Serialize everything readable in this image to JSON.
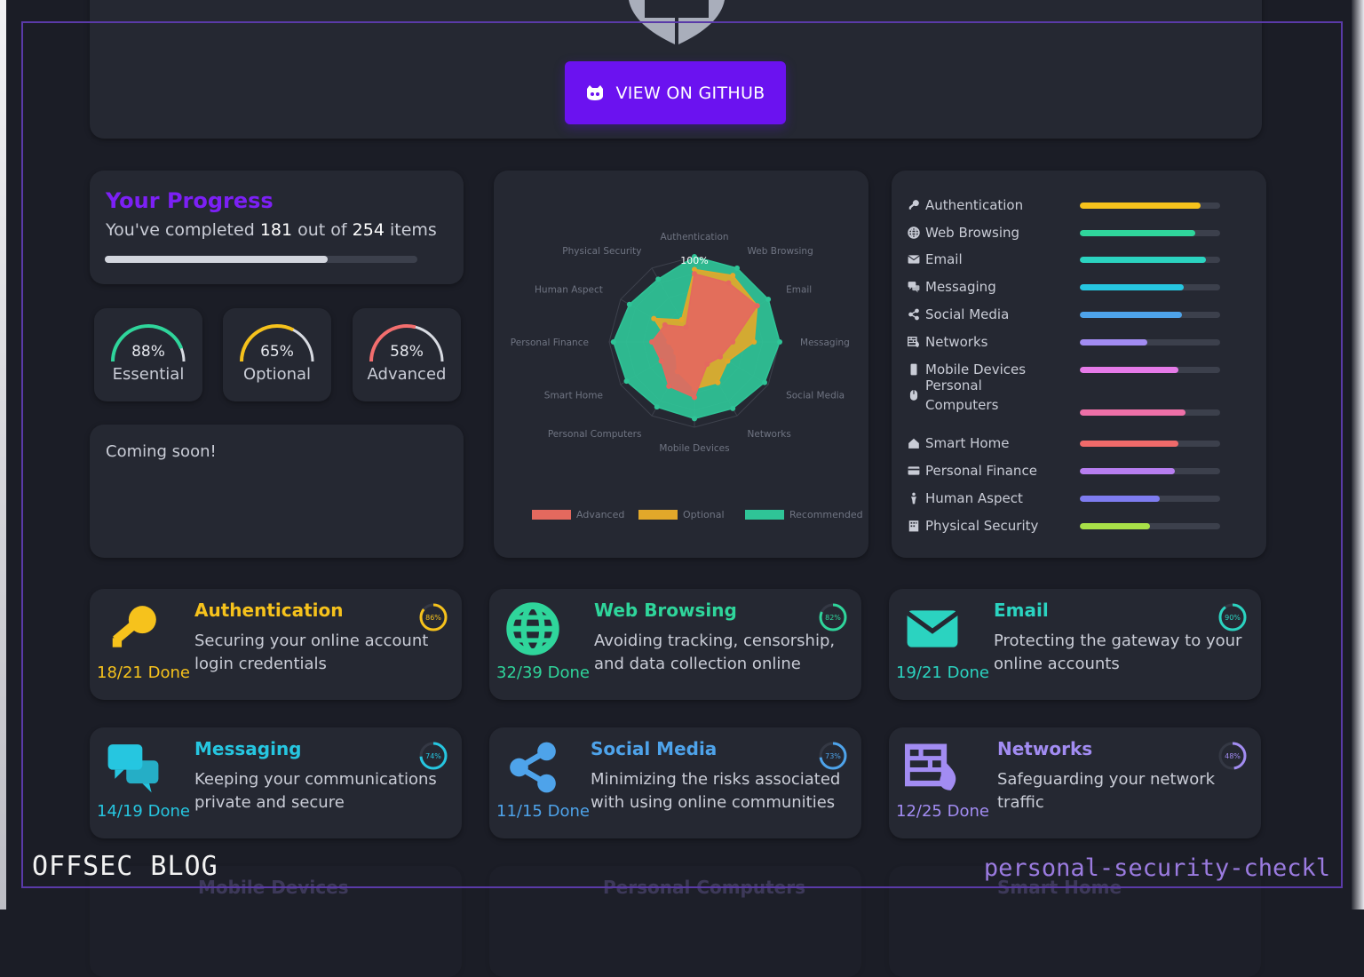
{
  "hero": {
    "github_button": "VIEW ON GITHUB"
  },
  "progress": {
    "title": "Your Progress",
    "prefix": "You've completed",
    "done": "181",
    "middle": "out of",
    "total": "254",
    "suffix": "items",
    "fraction": 0.713
  },
  "gauges": [
    {
      "pct": "88%",
      "value": 0.88,
      "label": "Essential",
      "color": "#2fd59b"
    },
    {
      "pct": "65%",
      "value": 0.65,
      "label": "Optional",
      "color": "#f6c21c"
    },
    {
      "pct": "58%",
      "value": 0.58,
      "label": "Advanced",
      "color": "#f36e6e"
    }
  ],
  "coming_soon": "Coming soon!",
  "chart_data": {
    "type": "radar",
    "axes": [
      "Authentication",
      "Web Browsing",
      "Email",
      "Messaging",
      "Social Media",
      "Networks",
      "Mobile Devices",
      "Personal Computers",
      "Smart Home",
      "Personal Finance",
      "Human Aspect",
      "Physical Security"
    ],
    "scale_label": "100%",
    "series": [
      {
        "name": "Recommended",
        "color": "#2fc497",
        "values": [
          100,
          100,
          100,
          100,
          95,
          90,
          90,
          88,
          92,
          95,
          88,
          85
        ]
      },
      {
        "name": "Optional",
        "color": "#e2a82a",
        "values": [
          85,
          90,
          85,
          70,
          45,
          55,
          55,
          40,
          25,
          30,
          55,
          30
        ]
      },
      {
        "name": "Advanced",
        "color": "#e4695e",
        "values": [
          80,
          80,
          85,
          45,
          35,
          30,
          65,
          60,
          45,
          50,
          40,
          20
        ]
      }
    ]
  },
  "categories": [
    {
      "name": "Authentication",
      "icon": "key-icon",
      "pct": 86,
      "color": "#f6c21c"
    },
    {
      "name": "Web Browsing",
      "icon": "globe-icon",
      "pct": 82,
      "color": "#2fd59b"
    },
    {
      "name": "Email",
      "icon": "envelope-icon",
      "pct": 90,
      "color": "#2bd3c0"
    },
    {
      "name": "Messaging",
      "icon": "chat-icon",
      "pct": 74,
      "color": "#26c6e0"
    },
    {
      "name": "Social Media",
      "icon": "share-icon",
      "pct": 73,
      "color": "#4ea3ea"
    },
    {
      "name": "Networks",
      "icon": "firewall-icon",
      "pct": 48,
      "color": "#a28cf2"
    },
    {
      "name": "Mobile Devices",
      "icon": "phone-icon",
      "pct": 70,
      "color": "#e57ae8"
    },
    {
      "name": "Personal Computers",
      "icon": "mouse-icon",
      "pct": 75,
      "color": "#ee70a8"
    },
    {
      "name": "Smart Home",
      "icon": "house-icon",
      "pct": 70,
      "color": "#f06a6a"
    },
    {
      "name": "Personal Finance",
      "icon": "card-icon",
      "pct": 68,
      "color": "#b77ef0"
    },
    {
      "name": "Human Aspect",
      "icon": "person-icon",
      "pct": 57,
      "color": "#7e7cf0"
    },
    {
      "name": "Physical Security",
      "icon": "building-icon",
      "pct": 50,
      "color": "#a8e048"
    }
  ],
  "sections": [
    {
      "title": "Authentication",
      "desc": "Securing your online account login credentials",
      "done": "18/21 Done",
      "ring": "86%",
      "value": 0.86,
      "color": "#f6c21c",
      "icon": "key-icon"
    },
    {
      "title": "Web Browsing",
      "desc": "Avoiding tracking, censorship, and data collection online",
      "done": "32/39 Done",
      "ring": "82%",
      "value": 0.82,
      "color": "#2fd59b",
      "icon": "globe-icon"
    },
    {
      "title": "Email",
      "desc": "Protecting the gateway to your online accounts",
      "done": "19/21 Done",
      "ring": "90%",
      "value": 0.9,
      "color": "#2bd3c0",
      "icon": "envelope-icon"
    },
    {
      "title": "Messaging",
      "desc": "Keeping your communications private and secure",
      "done": "14/19 Done",
      "ring": "74%",
      "value": 0.74,
      "color": "#26c6e0",
      "icon": "chat-icon"
    },
    {
      "title": "Social Media",
      "desc": "Minimizing the risks associated with using online communities",
      "done": "11/15 Done",
      "ring": "73%",
      "value": 0.73,
      "color": "#4ea3ea",
      "icon": "share-icon"
    },
    {
      "title": "Networks",
      "desc": "Safeguarding your network traffic",
      "done": "12/25 Done",
      "ring": "48%",
      "value": 0.48,
      "color": "#a28cf2",
      "icon": "firewall-icon"
    }
  ],
  "faded_sections": [
    "Mobile Devices",
    "Personal Computers",
    "Smart Home"
  ],
  "watermark": {
    "left": "OFFSEC  BLOG",
    "right": "personal-security-checkl"
  }
}
